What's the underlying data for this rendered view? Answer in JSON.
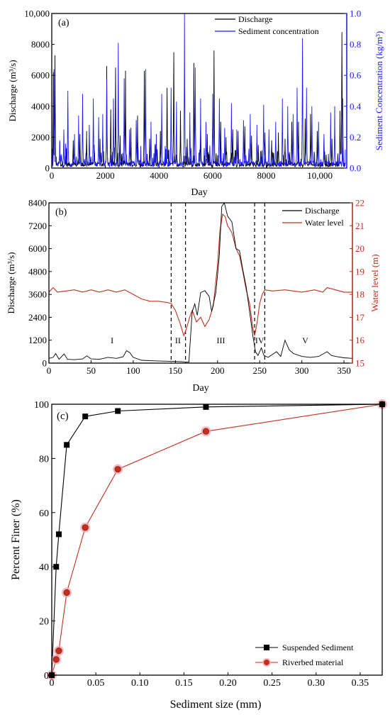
{
  "colors": {
    "black": "#000000",
    "blue": "#1a1aff",
    "red": "#c0301e",
    "pink": "#f4a5ad",
    "axis": "#000000"
  },
  "chart_data": [
    {
      "type": "line",
      "panel_label": "(a)",
      "xlabel": "Day",
      "ylabel_left": "Discharge (m³/s)",
      "ylabel_right": "Sediment Concentration (kg/m³)",
      "xlim": [
        0,
        11000
      ],
      "ylim_left": [
        0,
        10000
      ],
      "ylim_right": [
        0,
        1.0
      ],
      "xticks": [
        0,
        2000,
        4000,
        6000,
        8000,
        10000
      ],
      "xtick_labels": [
        "0",
        "2000",
        "4000",
        "6000",
        "8000",
        "10,000"
      ],
      "yticks_left": [
        0,
        2000,
        4000,
        6000,
        8000,
        10000
      ],
      "ytick_labels_left": [
        "0",
        "2000",
        "4000",
        "6000",
        "8000",
        "10,000"
      ],
      "yticks_right": [
        0,
        0.2,
        0.4,
        0.6,
        0.8,
        1.0
      ],
      "ytick_labels_right": [
        "0.0",
        "0.2",
        "0.4",
        "0.6",
        "0.8",
        "1.0"
      ],
      "legend_position": "top-right",
      "series": [
        {
          "name": "Discharge",
          "axis": "left",
          "color": "#000000",
          "peaks": [
            [
              60,
              6200
            ],
            [
              120,
              7300
            ],
            [
              300,
              1700
            ],
            [
              550,
              1300
            ],
            [
              800,
              1800
            ],
            [
              1050,
              2200
            ],
            [
              1300,
              2400
            ],
            [
              1580,
              1500
            ],
            [
              1800,
              1900
            ],
            [
              2050,
              6600
            ],
            [
              2200,
              3800
            ],
            [
              2380,
              6500
            ],
            [
              2550,
              2100
            ],
            [
              2750,
              6300
            ],
            [
              2950,
              2600
            ],
            [
              3200,
              3400
            ],
            [
              3450,
              6300
            ],
            [
              3650,
              1900
            ],
            [
              3850,
              1500
            ],
            [
              4050,
              2400
            ],
            [
              4300,
              5200
            ],
            [
              4550,
              7500
            ],
            [
              4800,
              3700
            ],
            [
              5050,
              1900
            ],
            [
              5300,
              6800
            ],
            [
              5550,
              2600
            ],
            [
              5800,
              2200
            ],
            [
              6050,
              7600
            ],
            [
              6300,
              3000
            ],
            [
              6500,
              2000
            ],
            [
              6750,
              2500
            ],
            [
              6950,
              2400
            ],
            [
              7200,
              2700
            ],
            [
              7450,
              2100
            ],
            [
              7700,
              1500
            ],
            [
              7950,
              2300
            ],
            [
              8200,
              1800
            ],
            [
              8450,
              2300
            ],
            [
              8700,
              1900
            ],
            [
              8950,
              3000
            ],
            [
              9200,
              3000
            ],
            [
              9450,
              3200
            ],
            [
              9650,
              3500
            ],
            [
              9900,
              2400
            ],
            [
              10150,
              1800
            ],
            [
              10450,
              1900
            ],
            [
              10750,
              3700
            ],
            [
              10820,
              8800
            ]
          ]
        },
        {
          "name": "Sediment concentration",
          "axis": "right",
          "color": "#1a1aff",
          "peaks": [
            [
              80,
              0.64
            ],
            [
              300,
              0.18
            ],
            [
              450,
              0.25
            ],
            [
              600,
              0.5
            ],
            [
              850,
              0.22
            ],
            [
              1000,
              0.34
            ],
            [
              1150,
              0.48
            ],
            [
              1400,
              0.28
            ],
            [
              1550,
              0.45
            ],
            [
              1750,
              0.33
            ],
            [
              1900,
              0.35
            ],
            [
              2050,
              0.58
            ],
            [
              2300,
              0.45
            ],
            [
              2480,
              0.81
            ],
            [
              2700,
              0.58
            ],
            [
              2900,
              0.25
            ],
            [
              3150,
              0.31
            ],
            [
              3500,
              0.64
            ],
            [
              3700,
              0.3
            ],
            [
              3900,
              0.22
            ],
            [
              4100,
              0.48
            ],
            [
              4450,
              0.52
            ],
            [
              4650,
              0.43
            ],
            [
              4950,
              1.0
            ],
            [
              5150,
              0.36
            ],
            [
              5350,
              0.65
            ],
            [
              5550,
              0.45
            ],
            [
              5750,
              0.3
            ],
            [
              6000,
              0.48
            ],
            [
              6250,
              0.45
            ],
            [
              6450,
              0.26
            ],
            [
              6700,
              0.42
            ],
            [
              6900,
              0.25
            ],
            [
              7150,
              0.31
            ],
            [
              7400,
              0.35
            ],
            [
              7650,
              0.28
            ],
            [
              7900,
              0.41
            ],
            [
              8100,
              0.25
            ],
            [
              8350,
              0.3
            ],
            [
              8600,
              0.45
            ],
            [
              8800,
              0.4
            ],
            [
              9000,
              0.35
            ],
            [
              9150,
              0.52
            ],
            [
              9350,
              0.84
            ],
            [
              9500,
              0.52
            ],
            [
              9700,
              0.4
            ],
            [
              9950,
              0.3
            ],
            [
              10150,
              0.22
            ],
            [
              10400,
              0.36
            ],
            [
              10550,
              0.4
            ],
            [
              10850,
              0.45
            ]
          ]
        }
      ]
    },
    {
      "type": "line",
      "panel_label": "(b)",
      "xlabel": "Day",
      "ylabel_left": "Discharge (m³/s)",
      "ylabel_right": "Water level (m)",
      "xlim": [
        0,
        360
      ],
      "ylim_left": [
        0,
        8400
      ],
      "ylim_right": [
        15,
        22
      ],
      "xticks": [
        0,
        50,
        100,
        150,
        200,
        250,
        300,
        350
      ],
      "yticks_left": [
        0,
        1200,
        2400,
        3600,
        4800,
        6000,
        7200,
        8400
      ],
      "yticks_right": [
        15,
        16,
        17,
        18,
        19,
        20,
        21,
        22
      ],
      "legend_position": "top-right",
      "dashed_lines_x": [
        145,
        162,
        244,
        256
      ],
      "regions": [
        {
          "label": "I",
          "x": 75
        },
        {
          "label": "II",
          "x": 153
        },
        {
          "label": "III",
          "x": 204
        },
        {
          "label": "IV",
          "x": 250
        },
        {
          "label": "V",
          "x": 304
        }
      ],
      "series": [
        {
          "name": "Discharge",
          "axis": "left",
          "color": "#000000",
          "points": [
            [
              0,
              250
            ],
            [
              5,
              300
            ],
            [
              8,
              500
            ],
            [
              12,
              200
            ],
            [
              18,
              480
            ],
            [
              22,
              200
            ],
            [
              30,
              180
            ],
            [
              40,
              220
            ],
            [
              45,
              380
            ],
            [
              50,
              220
            ],
            [
              60,
              200
            ],
            [
              70,
              300
            ],
            [
              80,
              250
            ],
            [
              88,
              330
            ],
            [
              92,
              650
            ],
            [
              96,
              550
            ],
            [
              100,
              300
            ],
            [
              110,
              150
            ],
            [
              125,
              120
            ],
            [
              140,
              100
            ],
            [
              155,
              80
            ],
            [
              166,
              50
            ],
            [
              167,
              700
            ],
            [
              170,
              2700
            ],
            [
              173,
              3100
            ],
            [
              176,
              2500
            ],
            [
              180,
              3700
            ],
            [
              185,
              3800
            ],
            [
              190,
              3500
            ],
            [
              193,
              2700
            ],
            [
              198,
              3700
            ],
            [
              202,
              5600
            ],
            [
              205,
              8200
            ],
            [
              208,
              8400
            ],
            [
              212,
              7700
            ],
            [
              217,
              7400
            ],
            [
              222,
              6000
            ],
            [
              226,
              5900
            ],
            [
              230,
              4900
            ],
            [
              234,
              4000
            ],
            [
              238,
              2700
            ],
            [
              242,
              1400
            ],
            [
              245,
              600
            ],
            [
              248,
              400
            ],
            [
              252,
              800
            ],
            [
              255,
              400
            ],
            [
              260,
              300
            ],
            [
              270,
              600
            ],
            [
              275,
              350
            ],
            [
              280,
              1200
            ],
            [
              285,
              700
            ],
            [
              290,
              500
            ],
            [
              300,
              350
            ],
            [
              310,
              300
            ],
            [
              320,
              350
            ],
            [
              330,
              600
            ],
            [
              335,
              400
            ],
            [
              340,
              350
            ],
            [
              350,
              280
            ],
            [
              360,
              250
            ]
          ]
        },
        {
          "name": "Water level",
          "axis": "right",
          "color": "#c0301e",
          "points": [
            [
              0,
              18.1
            ],
            [
              5,
              18.3
            ],
            [
              10,
              18.1
            ],
            [
              20,
              18.15
            ],
            [
              30,
              18.2
            ],
            [
              40,
              18.1
            ],
            [
              50,
              18.2
            ],
            [
              60,
              18.1
            ],
            [
              70,
              18.2
            ],
            [
              80,
              18.1
            ],
            [
              90,
              18.2
            ],
            [
              100,
              18.0
            ],
            [
              110,
              17.8
            ],
            [
              120,
              17.7
            ],
            [
              130,
              17.7
            ],
            [
              140,
              17.65
            ],
            [
              145,
              17.6
            ],
            [
              150,
              17.3
            ],
            [
              155,
              16.8
            ],
            [
              160,
              16.2
            ],
            [
              163,
              16.5
            ],
            [
              167,
              17.0
            ],
            [
              170,
              17.3
            ],
            [
              175,
              16.8
            ],
            [
              180,
              17.0
            ],
            [
              185,
              16.6
            ],
            [
              190,
              16.9
            ],
            [
              195,
              17.5
            ],
            [
              200,
              19.3
            ],
            [
              203,
              20.8
            ],
            [
              206,
              21.5
            ],
            [
              209,
              21.4
            ],
            [
              212,
              21.0
            ],
            [
              217,
              20.7
            ],
            [
              222,
              20.0
            ],
            [
              226,
              19.7
            ],
            [
              230,
              19.0
            ],
            [
              234,
              18.2
            ],
            [
              238,
              17.6
            ],
            [
              242,
              16.5
            ],
            [
              244,
              16.2
            ],
            [
              247,
              16.8
            ],
            [
              250,
              17.6
            ],
            [
              253,
              18.0
            ],
            [
              256,
              18.2
            ],
            [
              265,
              18.15
            ],
            [
              280,
              18.2
            ],
            [
              300,
              18.1
            ],
            [
              315,
              18.2
            ],
            [
              325,
              18.1
            ],
            [
              330,
              18.3
            ],
            [
              340,
              18.2
            ],
            [
              350,
              18.1
            ],
            [
              360,
              18.1
            ]
          ]
        }
      ]
    },
    {
      "type": "line",
      "panel_label": "(c)",
      "xlabel": "Sediment size (mm)",
      "ylabel": "Percent Finer (%)",
      "xlim": [
        0,
        0.375
      ],
      "ylim": [
        0,
        100
      ],
      "xticks": [
        0,
        0.05,
        0.1,
        0.15,
        0.2,
        0.25,
        0.3,
        0.35
      ],
      "xtick_labels": [
        "0",
        "0.05",
        "0.10",
        "0.15",
        "0.20",
        "0.25",
        "0.30",
        "0.35"
      ],
      "yticks": [
        0,
        20,
        40,
        60,
        80,
        100
      ],
      "legend_position": "bottom-right",
      "series": [
        {
          "name": "Suspended Sediment",
          "color": "#000000",
          "marker": "square",
          "x": [
            0,
            0.005,
            0.008,
            0.017,
            0.038,
            0.075,
            0.175,
            0.375
          ],
          "y": [
            0,
            40,
            52,
            85,
            95.5,
            97.5,
            99,
            100
          ]
        },
        {
          "name": "Riverbed material",
          "color": "#c0301e",
          "marker": "circle",
          "x": [
            0,
            0.005,
            0.008,
            0.017,
            0.038,
            0.075,
            0.175,
            0.375
          ],
          "y": [
            0,
            5.8,
            9,
            30.5,
            54.5,
            76,
            90,
            100
          ]
        }
      ]
    }
  ]
}
